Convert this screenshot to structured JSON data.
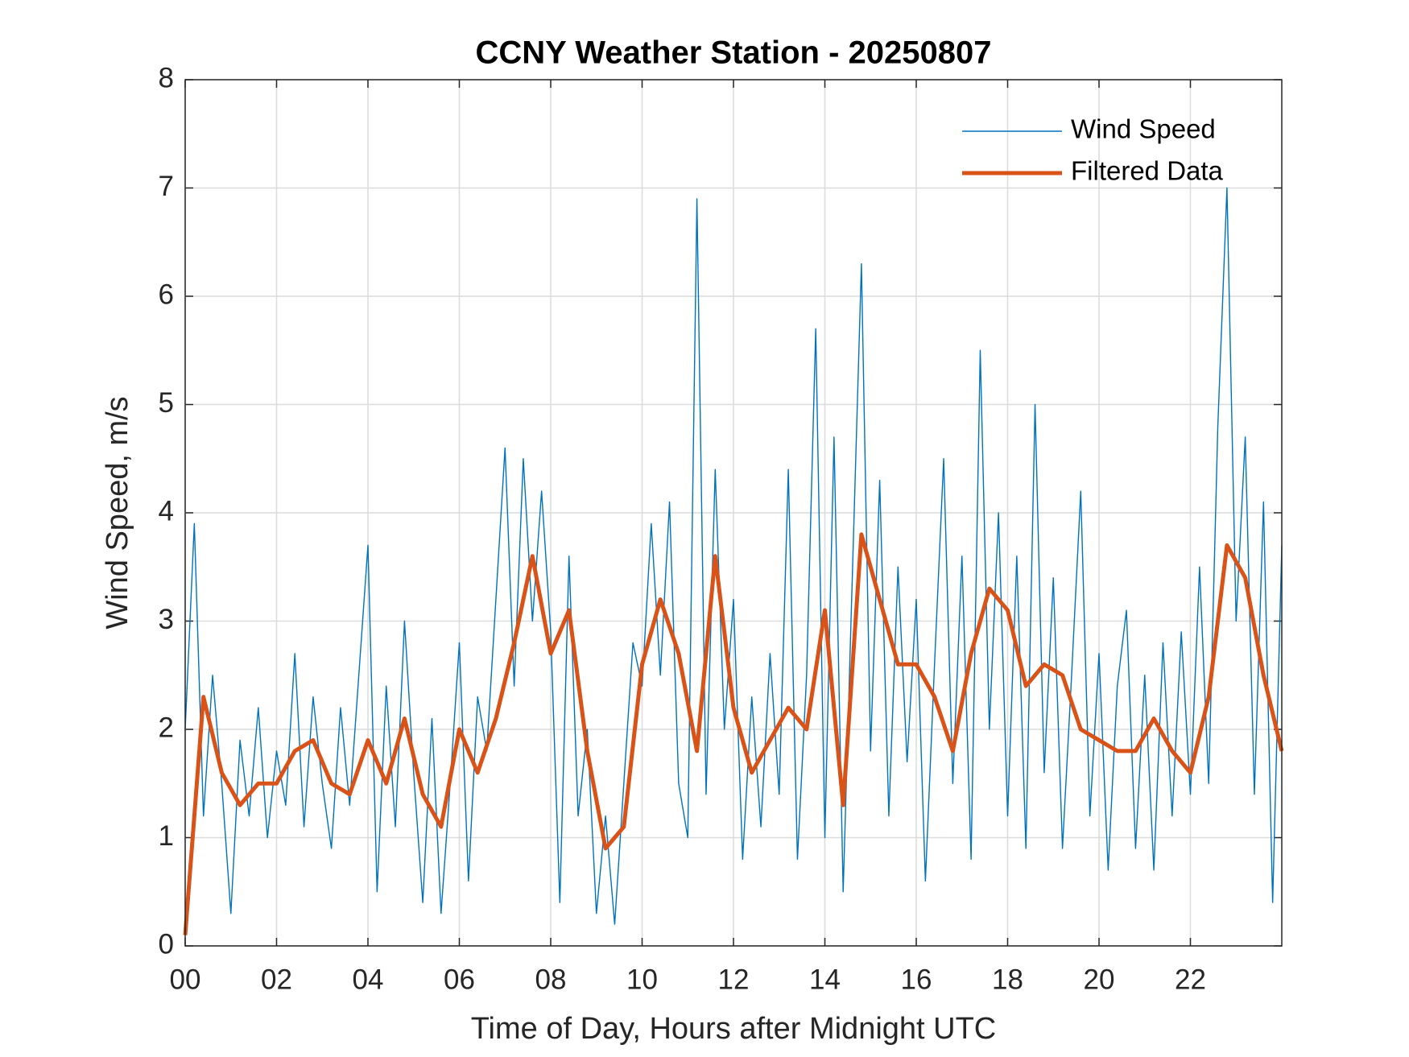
{
  "chart_data": {
    "type": "line",
    "title": "CCNY Weather Station - 20250807",
    "x_label": "Time of Day, Hours after Midnight UTC",
    "y_label": "Wind Speed, m/s",
    "xlim": [
      0,
      24
    ],
    "xticks": [
      {
        "value": 0,
        "label": "00"
      },
      {
        "value": 2,
        "label": "02"
      },
      {
        "value": 4,
        "label": "04"
      },
      {
        "value": 6,
        "label": "06"
      },
      {
        "value": 8,
        "label": "08"
      },
      {
        "value": 10,
        "label": "10"
      },
      {
        "value": 12,
        "label": "12"
      },
      {
        "value": 14,
        "label": "14"
      },
      {
        "value": 16,
        "label": "16"
      },
      {
        "value": 18,
        "label": "18"
      },
      {
        "value": 20,
        "label": "20"
      },
      {
        "value": 22,
        "label": "22"
      }
    ],
    "ylim": [
      0,
      8
    ],
    "yticks": [
      0,
      1,
      2,
      3,
      4,
      5,
      6,
      7,
      8
    ],
    "grid": true,
    "legend": "northeast",
    "series": [
      {
        "name": "Wind Speed",
        "color": "#0072bd",
        "width": 1.4,
        "x": [
          0,
          0.2,
          0.4,
          0.6,
          0.8,
          1,
          1.2,
          1.4,
          1.6,
          1.8,
          2,
          2.2,
          2.4,
          2.6,
          2.8,
          3,
          3.2,
          3.4,
          3.6,
          3.8,
          4,
          4.2,
          4.4,
          4.6,
          4.8,
          5,
          5.2,
          5.4,
          5.6,
          5.8,
          6,
          6.2,
          6.4,
          6.6,
          6.8,
          7,
          7.2,
          7.4,
          7.6,
          7.8,
          8,
          8.2,
          8.4,
          8.6,
          8.8,
          9,
          9.2,
          9.4,
          9.6,
          9.8,
          10,
          10.2,
          10.4,
          10.6,
          10.8,
          11,
          11.2,
          11.4,
          11.6,
          11.8,
          12,
          12.2,
          12.4,
          12.6,
          12.8,
          13,
          13.2,
          13.4,
          13.6,
          13.8,
          14,
          14.2,
          14.4,
          14.6,
          14.8,
          15,
          15.2,
          15.4,
          15.6,
          15.8,
          16,
          16.2,
          16.4,
          16.6,
          16.8,
          17,
          17.2,
          17.4,
          17.6,
          17.8,
          18,
          18.2,
          18.4,
          18.6,
          18.8,
          19,
          19.2,
          19.4,
          19.6,
          19.8,
          20,
          20.2,
          20.4,
          20.6,
          20.8,
          21,
          21.2,
          21.4,
          21.6,
          21.8,
          22,
          22.2,
          22.4,
          22.6,
          22.8,
          23,
          23.2,
          23.4,
          23.6,
          23.8,
          24
        ],
        "values": [
          2.0,
          3.9,
          1.2,
          2.5,
          1.5,
          0.3,
          1.9,
          1.2,
          2.2,
          1.0,
          1.8,
          1.3,
          2.7,
          1.1,
          2.3,
          1.5,
          0.9,
          2.2,
          1.3,
          2.5,
          3.7,
          0.5,
          2.4,
          1.1,
          3.0,
          1.6,
          0.4,
          2.1,
          0.3,
          1.5,
          2.8,
          0.6,
          2.3,
          1.8,
          3.2,
          4.6,
          2.4,
          4.5,
          3.0,
          4.2,
          2.9,
          0.4,
          3.6,
          1.2,
          2.0,
          0.3,
          1.2,
          0.2,
          1.5,
          2.8,
          2.4,
          3.9,
          2.5,
          4.1,
          1.5,
          1.0,
          6.9,
          1.4,
          4.4,
          2.0,
          3.2,
          0.8,
          2.3,
          1.1,
          2.7,
          1.4,
          4.4,
          0.8,
          2.5,
          5.7,
          1.0,
          4.7,
          0.5,
          3.4,
          6.3,
          1.8,
          4.3,
          1.2,
          3.5,
          1.7,
          3.2,
          0.6,
          2.6,
          4.5,
          1.5,
          3.6,
          0.8,
          5.5,
          2.0,
          4.0,
          1.2,
          3.6,
          0.9,
          5.0,
          1.6,
          3.4,
          0.9,
          2.5,
          4.2,
          1.2,
          2.7,
          0.7,
          2.4,
          3.1,
          0.9,
          2.5,
          0.7,
          2.8,
          1.2,
          2.9,
          1.4,
          3.5,
          1.5,
          4.8,
          7.0,
          3.0,
          4.7,
          1.4,
          4.1,
          0.4,
          3.7
        ]
      },
      {
        "name": "Filtered Data",
        "color": "#d95319",
        "width": 5,
        "x": [
          0,
          0.4,
          0.8,
          1.2,
          1.6,
          2,
          2.4,
          2.8,
          3.2,
          3.6,
          4,
          4.4,
          4.8,
          5.2,
          5.6,
          6,
          6.4,
          6.8,
          7.2,
          7.6,
          8,
          8.4,
          8.8,
          9.2,
          9.6,
          10,
          10.4,
          10.8,
          11.2,
          11.6,
          12,
          12.4,
          12.8,
          13.2,
          13.6,
          14,
          14.4,
          14.8,
          15.2,
          15.6,
          16,
          16.4,
          16.8,
          17.2,
          17.6,
          18,
          18.4,
          18.8,
          19.2,
          19.6,
          20,
          20.4,
          20.8,
          21.2,
          21.6,
          22,
          22.4,
          22.8,
          23.2,
          23.6,
          24
        ],
        "values": [
          0.1,
          2.3,
          1.6,
          1.3,
          1.5,
          1.5,
          1.8,
          1.9,
          1.5,
          1.4,
          1.9,
          1.5,
          2.1,
          1.4,
          1.1,
          2.0,
          1.6,
          2.1,
          2.8,
          3.6,
          2.7,
          3.1,
          1.8,
          0.9,
          1.1,
          2.6,
          3.2,
          2.7,
          1.8,
          3.6,
          2.2,
          1.6,
          1.9,
          2.2,
          2.0,
          3.1,
          1.3,
          3.8,
          3.2,
          2.6,
          2.6,
          2.3,
          1.8,
          2.7,
          3.3,
          3.1,
          2.4,
          2.6,
          2.5,
          2.0,
          1.9,
          1.8,
          1.8,
          2.1,
          1.8,
          1.6,
          2.3,
          3.7,
          3.4,
          2.5,
          1.8
        ]
      }
    ]
  }
}
